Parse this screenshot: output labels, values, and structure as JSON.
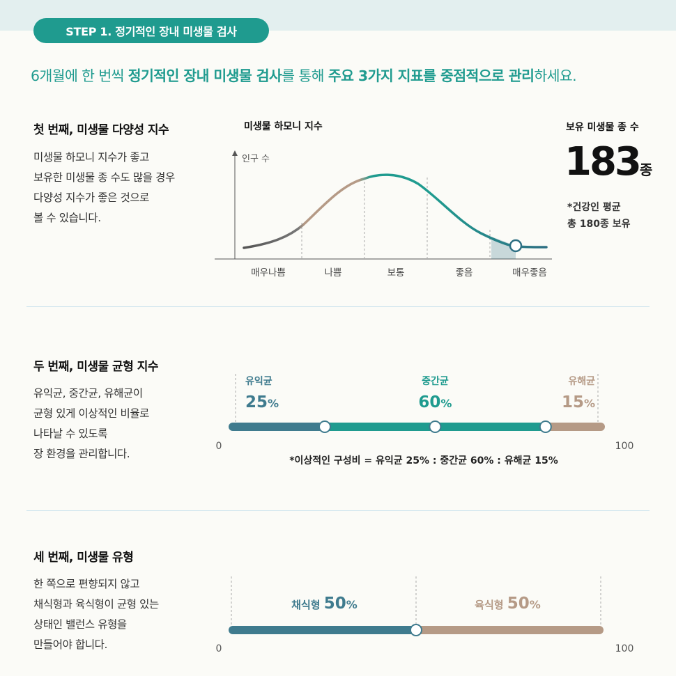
{
  "step_badge": "STEP 1. 정기적인 장내 미생물 검사",
  "headline": {
    "p1": "6개월에 한 번씩 ",
    "p2": "정기적인 장내 미생물 검사",
    "p3": "를 통해 ",
    "p4": "주요 3가지 지표를 중점적으로 관리",
    "p5": "하세요."
  },
  "section1": {
    "title": "첫 번째, 미생물 다양성 지수",
    "desc": [
      "미생물 하모니 지수가 좋고",
      "보유한 미생물 종 수도 많을 경우",
      "다양성 지수가 좋은 것으로",
      "볼 수 있습니다."
    ],
    "chart_title": "미생물 하모니 지수",
    "y_label": "인구 수",
    "categories": [
      "매우나쁨",
      "나쁨",
      "보통",
      "좋음",
      "매우좋음"
    ],
    "species_label": "보유 미생물 종 수",
    "species_value": "183",
    "species_unit": "종",
    "note_line1": "*건강인 평균",
    "note_line2": "총 180종 보유"
  },
  "section2": {
    "title": "두 번째, 미생물 균형 지수",
    "desc": [
      "유익균, 중간균, 유해균이",
      "균형 있게 이상적인 비율로",
      "나타날 수 있도록",
      "장 환경을 관리합니다."
    ],
    "axis_min": "0",
    "axis_max": "100",
    "segments": [
      {
        "label": "유익균",
        "value": "25",
        "unit": "%",
        "share": 25,
        "color": "#3f7b8e"
      },
      {
        "label": "중간균",
        "value": "60",
        "unit": "%",
        "share": 60,
        "color": "#1f9b8f"
      },
      {
        "label": "유해균",
        "value": "15",
        "unit": "%",
        "share": 15,
        "color": "#b59a86"
      }
    ],
    "footnote": "*이상적인 구성비 = 유익균 25% : 중간균 60% : 유해균 15%"
  },
  "section3": {
    "title": "세 번째, 미생물 유형",
    "desc": [
      "한 쪽으로 편향되지 않고",
      "채식형과 육식형이 균형 있는",
      "상태인 밸런스 유형을",
      "만들어야 합니다."
    ],
    "axis_min": "0",
    "axis_max": "100",
    "segments": [
      {
        "label": "채식형",
        "value": "50",
        "unit": "%",
        "share": 50,
        "color": "#3f7b8e"
      },
      {
        "label": "육식형",
        "value": "50",
        "unit": "%",
        "share": 50,
        "color": "#b59a86"
      }
    ]
  }
}
